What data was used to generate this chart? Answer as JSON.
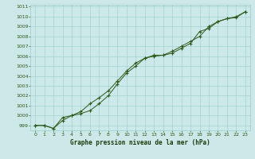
{
  "series1": {
    "x": [
      0,
      1,
      2,
      3,
      4,
      5,
      6,
      7,
      8,
      9,
      10,
      11,
      12,
      13,
      14,
      15,
      16,
      17,
      18,
      19,
      20,
      21,
      22,
      23
    ],
    "y": [
      999.0,
      999.0,
      998.7,
      999.5,
      1000.0,
      1000.2,
      1000.5,
      1001.2,
      1002.0,
      1003.2,
      1004.3,
      1005.0,
      1005.8,
      1006.0,
      1006.1,
      1006.3,
      1006.8,
      1007.3,
      1008.5,
      1008.8,
      1009.5,
      1009.8,
      1009.9,
      1010.5
    ]
  },
  "series2": {
    "x": [
      0,
      1,
      2,
      3,
      4,
      5,
      6,
      7,
      8,
      9,
      10,
      11,
      12,
      13,
      14,
      15,
      16,
      17,
      18,
      19,
      20,
      21,
      22,
      23
    ],
    "y": [
      999.0,
      999.0,
      998.7,
      999.8,
      1000.0,
      1000.4,
      1001.2,
      1001.8,
      1002.5,
      1003.5,
      1004.5,
      1005.3,
      1005.8,
      1006.1,
      1006.1,
      1006.5,
      1007.0,
      1007.5,
      1008.0,
      1009.0,
      1009.5,
      1009.8,
      1010.0,
      1010.5
    ]
  },
  "title": "Graphe pression niveau de la mer (hPa)",
  "xlim": [
    -0.5,
    23.5
  ],
  "ylim": [
    998.5,
    1011.2
  ],
  "yticks": [
    999,
    1000,
    1001,
    1002,
    1003,
    1004,
    1005,
    1006,
    1007,
    1008,
    1009,
    1010,
    1011
  ],
  "xticks": [
    0,
    1,
    2,
    3,
    4,
    5,
    6,
    7,
    8,
    9,
    10,
    11,
    12,
    13,
    14,
    15,
    16,
    17,
    18,
    19,
    20,
    21,
    22,
    23
  ],
  "bg_color": "#cce8e8",
  "grid_color": "#99cccc",
  "line_color": "#2d5a1b",
  "title_color": "#1a3a0a",
  "tick_color": "#2d5a1b"
}
